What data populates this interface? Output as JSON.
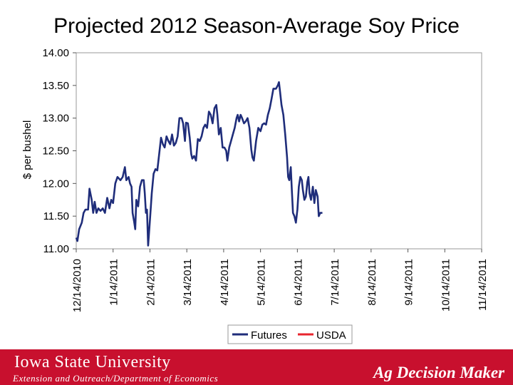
{
  "header": {
    "title": "Projected 2012 Season-Average Soy Price"
  },
  "footer": {
    "university": "Iowa State University",
    "department": "Extension and Outreach/Department of Economics",
    "brand": "Ag Decision Maker",
    "color": "#c8102e"
  },
  "chart_data": {
    "type": "line",
    "title": "Projected 2012 Season-Average Soy Price",
    "xlabel": "",
    "ylabel": "$ per bushel",
    "ylim": [
      11.0,
      14.0
    ],
    "yticks": [
      "11.00",
      "11.50",
      "12.00",
      "12.50",
      "13.00",
      "13.50",
      "14.00"
    ],
    "xticks": [
      "12/14/2010",
      "1/14/2011",
      "2/14/2011",
      "3/14/2011",
      "4/14/2011",
      "5/14/2011",
      "6/14/2011",
      "7/14/2011",
      "8/14/2011",
      "9/14/2011",
      "10/14/2011",
      "11/14/2011"
    ],
    "x_range_index": [
      0,
      11
    ],
    "legend_position": "bottom",
    "series": [
      {
        "name": "Futures",
        "color": "#1f2d7a",
        "points": [
          [
            0,
            11.17
          ],
          [
            0.03,
            11.12
          ],
          [
            0.08,
            11.3
          ],
          [
            0.15,
            11.4
          ],
          [
            0.2,
            11.55
          ],
          [
            0.25,
            11.6
          ],
          [
            0.32,
            11.6
          ],
          [
            0.36,
            11.92
          ],
          [
            0.42,
            11.75
          ],
          [
            0.46,
            11.55
          ],
          [
            0.5,
            11.72
          ],
          [
            0.55,
            11.55
          ],
          [
            0.6,
            11.62
          ],
          [
            0.66,
            11.58
          ],
          [
            0.72,
            11.62
          ],
          [
            0.78,
            11.55
          ],
          [
            0.84,
            11.78
          ],
          [
            0.9,
            11.62
          ],
          [
            0.95,
            11.75
          ],
          [
            1.0,
            11.7
          ],
          [
            1.06,
            12.0
          ],
          [
            1.12,
            12.1
          ],
          [
            1.2,
            12.05
          ],
          [
            1.26,
            12.1
          ],
          [
            1.32,
            12.25
          ],
          [
            1.36,
            12.05
          ],
          [
            1.42,
            12.1
          ],
          [
            1.46,
            12.0
          ],
          [
            1.5,
            11.95
          ],
          [
            1.53,
            11.55
          ],
          [
            1.57,
            11.42
          ],
          [
            1.6,
            11.3
          ],
          [
            1.63,
            11.75
          ],
          [
            1.68,
            11.65
          ],
          [
            1.73,
            11.95
          ],
          [
            1.78,
            12.05
          ],
          [
            1.83,
            12.05
          ],
          [
            1.86,
            11.85
          ],
          [
            1.89,
            11.55
          ],
          [
            1.92,
            11.6
          ],
          [
            1.95,
            11.05
          ],
          [
            2.0,
            11.45
          ],
          [
            2.05,
            11.85
          ],
          [
            2.1,
            12.15
          ],
          [
            2.15,
            12.22
          ],
          [
            2.2,
            12.2
          ],
          [
            2.25,
            12.45
          ],
          [
            2.3,
            12.7
          ],
          [
            2.35,
            12.6
          ],
          [
            2.4,
            12.55
          ],
          [
            2.45,
            12.72
          ],
          [
            2.5,
            12.65
          ],
          [
            2.55,
            12.6
          ],
          [
            2.6,
            12.75
          ],
          [
            2.65,
            12.58
          ],
          [
            2.7,
            12.62
          ],
          [
            2.75,
            12.72
          ],
          [
            2.8,
            13.0
          ],
          [
            2.86,
            13.0
          ],
          [
            2.9,
            12.92
          ],
          [
            2.95,
            12.65
          ],
          [
            2.98,
            12.93
          ],
          [
            3.03,
            12.92
          ],
          [
            3.08,
            12.7
          ],
          [
            3.12,
            12.45
          ],
          [
            3.15,
            12.38
          ],
          [
            3.2,
            12.42
          ],
          [
            3.25,
            12.35
          ],
          [
            3.3,
            12.68
          ],
          [
            3.35,
            12.65
          ],
          [
            3.4,
            12.72
          ],
          [
            3.45,
            12.85
          ],
          [
            3.5,
            12.9
          ],
          [
            3.55,
            12.85
          ],
          [
            3.6,
            13.1
          ],
          [
            3.65,
            13.05
          ],
          [
            3.7,
            12.92
          ],
          [
            3.75,
            13.15
          ],
          [
            3.8,
            13.2
          ],
          [
            3.83,
            13.05
          ],
          [
            3.87,
            12.75
          ],
          [
            3.92,
            12.85
          ],
          [
            3.97,
            12.55
          ],
          [
            4.02,
            12.55
          ],
          [
            4.07,
            12.5
          ],
          [
            4.1,
            12.35
          ],
          [
            4.15,
            12.55
          ],
          [
            4.2,
            12.65
          ],
          [
            4.25,
            12.75
          ],
          [
            4.3,
            12.85
          ],
          [
            4.35,
            13.0
          ],
          [
            4.38,
            13.05
          ],
          [
            4.42,
            12.95
          ],
          [
            4.46,
            13.05
          ],
          [
            4.5,
            13.0
          ],
          [
            4.55,
            12.92
          ],
          [
            4.6,
            12.95
          ],
          [
            4.65,
            13.0
          ],
          [
            4.7,
            12.85
          ],
          [
            4.75,
            12.52
          ],
          [
            4.78,
            12.4
          ],
          [
            4.82,
            12.35
          ],
          [
            4.88,
            12.65
          ],
          [
            4.94,
            12.85
          ],
          [
            5.0,
            12.8
          ],
          [
            5.05,
            12.9
          ],
          [
            5.1,
            12.92
          ],
          [
            5.15,
            12.9
          ],
          [
            5.2,
            13.05
          ],
          [
            5.25,
            13.15
          ],
          [
            5.3,
            13.3
          ],
          [
            5.35,
            13.45
          ],
          [
            5.42,
            13.45
          ],
          [
            5.47,
            13.5
          ],
          [
            5.5,
            13.55
          ],
          [
            5.53,
            13.4
          ],
          [
            5.57,
            13.2
          ],
          [
            5.62,
            13.05
          ],
          [
            5.67,
            12.75
          ],
          [
            5.72,
            12.4
          ],
          [
            5.75,
            12.1
          ],
          [
            5.78,
            12.05
          ],
          [
            5.82,
            12.25
          ],
          [
            5.85,
            11.9
          ],
          [
            5.88,
            11.55
          ],
          [
            5.92,
            11.5
          ],
          [
            5.96,
            11.4
          ],
          [
            6.0,
            11.6
          ],
          [
            6.04,
            11.95
          ],
          [
            6.08,
            12.1
          ],
          [
            6.12,
            12.05
          ],
          [
            6.15,
            11.9
          ],
          [
            6.19,
            11.75
          ],
          [
            6.23,
            11.8
          ],
          [
            6.27,
            12.02
          ],
          [
            6.3,
            12.1
          ],
          [
            6.33,
            11.85
          ],
          [
            6.37,
            11.75
          ],
          [
            6.42,
            11.95
          ],
          [
            6.46,
            11.7
          ],
          [
            6.5,
            11.9
          ],
          [
            6.55,
            11.8
          ],
          [
            6.58,
            11.5
          ],
          [
            6.62,
            11.55
          ],
          [
            6.68,
            11.55
          ]
        ]
      },
      {
        "name": "USDA",
        "color": "#e8252e",
        "points": []
      }
    ]
  }
}
